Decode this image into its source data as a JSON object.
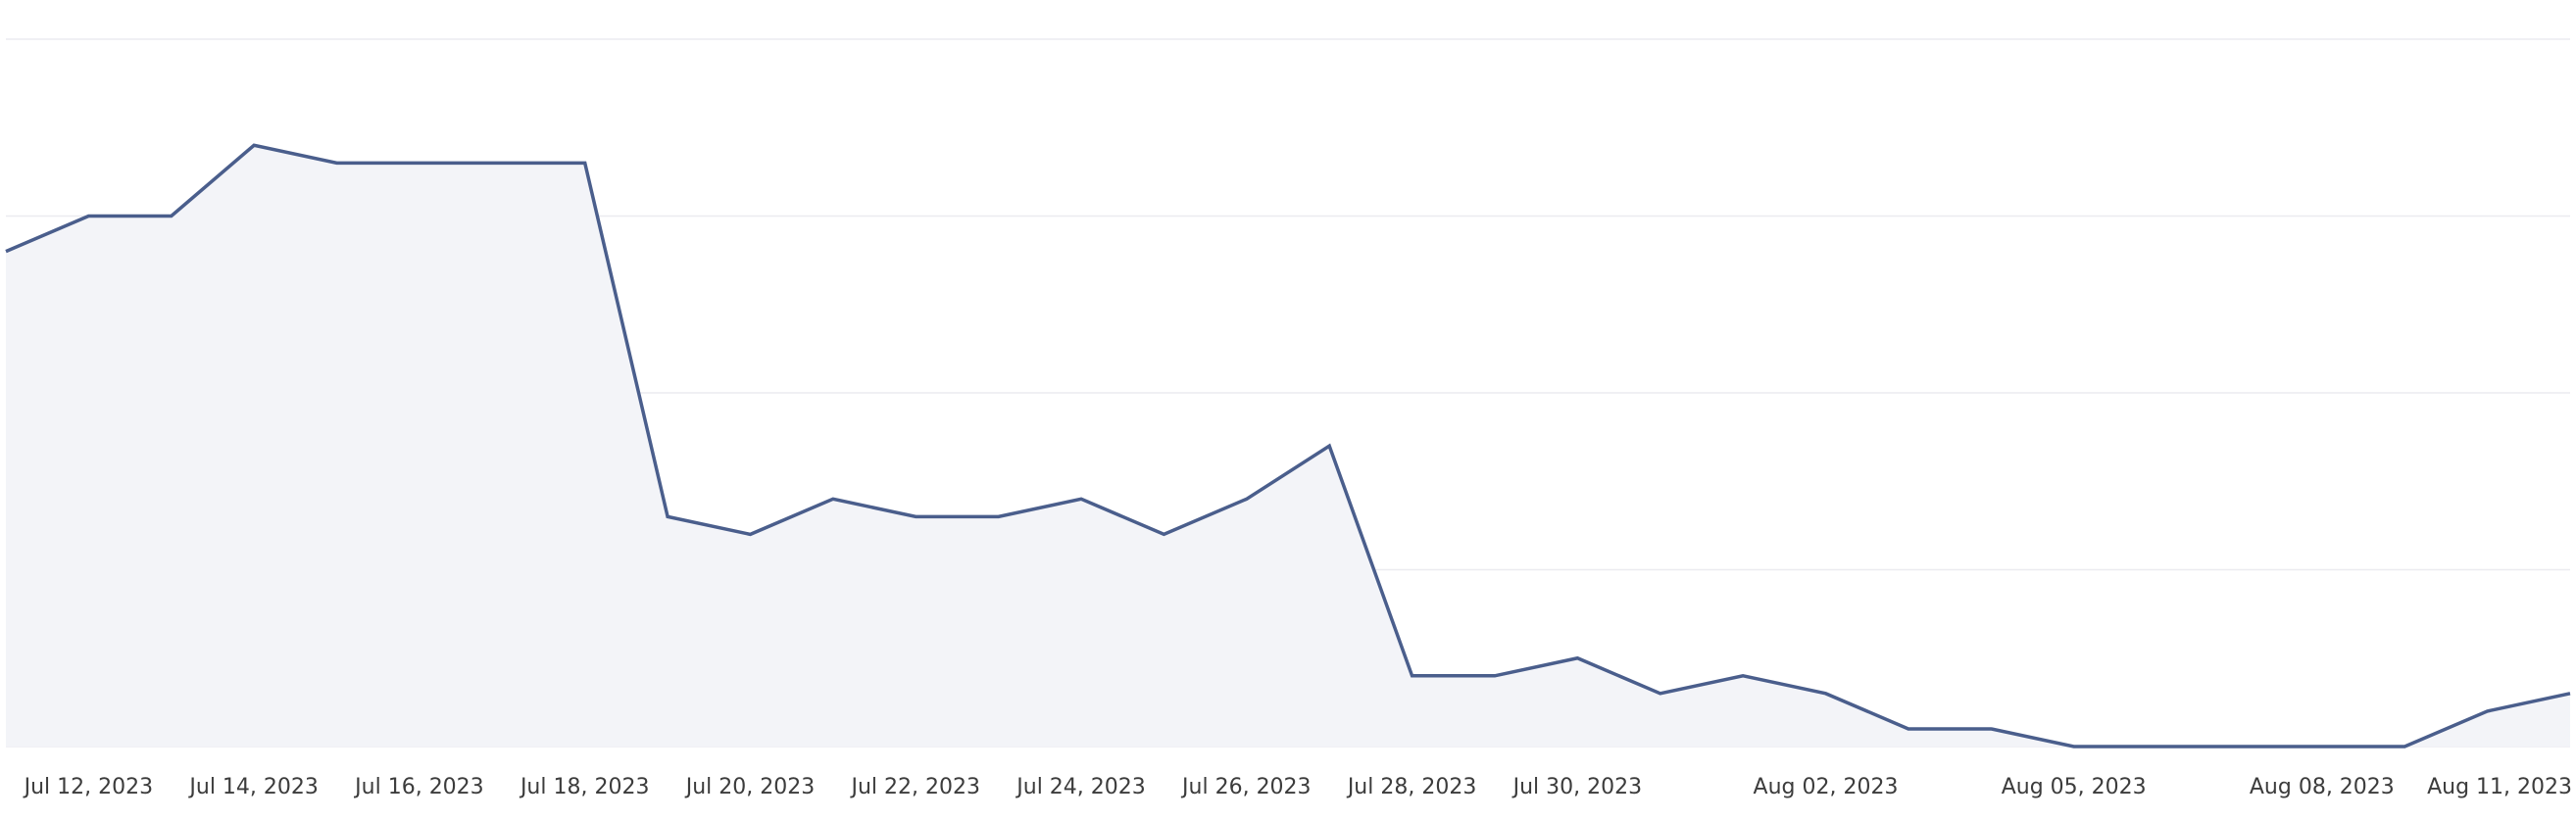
{
  "chart_data": {
    "type": "area",
    "title": "",
    "xlabel": "",
    "ylabel": "",
    "x": [
      "2023-07-11",
      "2023-07-12",
      "2023-07-13",
      "2023-07-14",
      "2023-07-15",
      "2023-07-16",
      "2023-07-17",
      "2023-07-18",
      "2023-07-19",
      "2023-07-20",
      "2023-07-21",
      "2023-07-22",
      "2023-07-23",
      "2023-07-24",
      "2023-07-25",
      "2023-07-26",
      "2023-07-27",
      "2023-07-28",
      "2023-07-29",
      "2023-07-30",
      "2023-07-31",
      "2023-08-01",
      "2023-08-02",
      "2023-08-03",
      "2023-08-04",
      "2023-08-05",
      "2023-08-06",
      "2023-08-07",
      "2023-08-08",
      "2023-08-09",
      "2023-08-10",
      "2023-08-11"
    ],
    "series": [
      {
        "values": [
          28,
          30,
          30,
          34,
          33,
          33,
          33,
          33,
          13,
          12,
          14,
          13,
          13,
          14,
          12,
          14,
          17,
          4,
          4,
          5,
          3,
          4,
          3,
          1,
          1,
          0,
          0,
          0,
          0,
          0,
          2,
          3
        ]
      }
    ],
    "x_tick_labels": [
      {
        "x": "2023-07-12",
        "label": "Jul 12, 2023"
      },
      {
        "x": "2023-07-14",
        "label": "Jul 14, 2023"
      },
      {
        "x": "2023-07-16",
        "label": "Jul 16, 2023"
      },
      {
        "x": "2023-07-18",
        "label": "Jul 18, 2023"
      },
      {
        "x": "2023-07-20",
        "label": "Jul 20, 2023"
      },
      {
        "x": "2023-07-22",
        "label": "Jul 22, 2023"
      },
      {
        "x": "2023-07-24",
        "label": "Jul 24, 2023"
      },
      {
        "x": "2023-07-26",
        "label": "Jul 26, 2023"
      },
      {
        "x": "2023-07-28",
        "label": "Jul 28, 2023"
      },
      {
        "x": "2023-07-30",
        "label": "Jul 30, 2023"
      },
      {
        "x": "2023-08-02",
        "label": "Aug 02, 2023"
      },
      {
        "x": "2023-08-05",
        "label": "Aug 05, 2023"
      },
      {
        "x": "2023-08-08",
        "label": "Aug 08, 2023"
      },
      {
        "x": "2023-08-11",
        "label": "Aug 11, 2023"
      }
    ],
    "ylim": [
      0,
      40
    ],
    "y_gridlines": [
      0,
      10,
      20,
      30,
      40
    ],
    "y_tick_labels_shown": false,
    "grid": true,
    "legend": "none",
    "colors": {
      "line": "#4a5e8c",
      "fill": "#f3f4f8",
      "grid": "#ececf0"
    }
  }
}
